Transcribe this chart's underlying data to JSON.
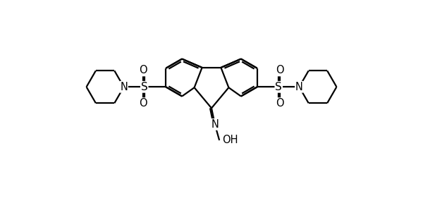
{
  "background_color": "#ffffff",
  "line_color": "#000000",
  "line_width": 1.6,
  "figsize": [
    6.0,
    2.85
  ],
  "dpi": 100,
  "font_size": 10.5,
  "xlim": [
    0.0,
    6.0
  ],
  "ylim": [
    0.2,
    2.9
  ]
}
